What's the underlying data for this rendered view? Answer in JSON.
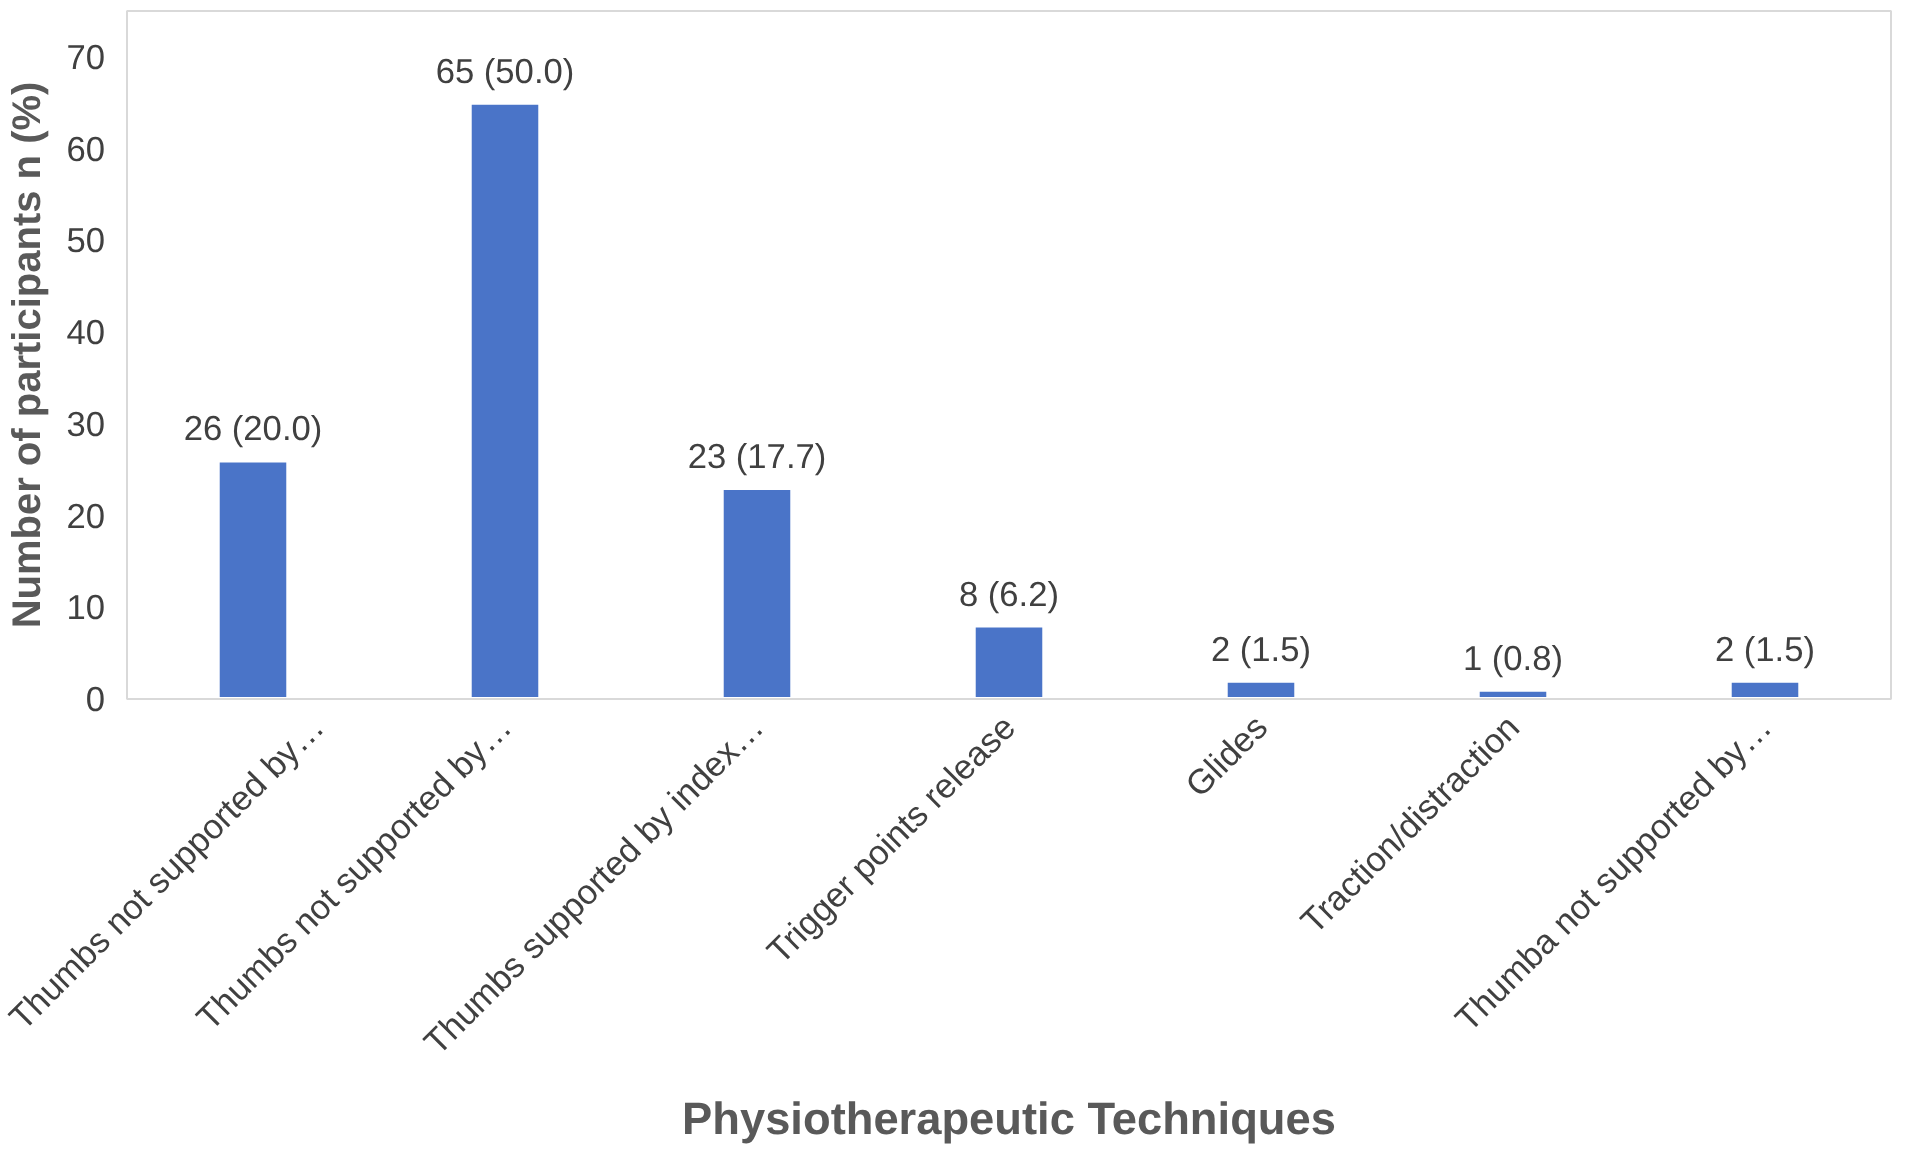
{
  "chart_data": {
    "type": "bar",
    "xlabel": "Physiotherapeutic Techniques",
    "ylabel": "Number of participants n (%)",
    "categories": [
      "Thumbs not supported by…",
      "Thumbs not supported by…",
      "Thumbs supported by index…",
      "Trigger points release",
      "Glides",
      "Traction/distraction",
      "Thumba not supported by…"
    ],
    "values": [
      26,
      65,
      23,
      8,
      2,
      1,
      2
    ],
    "value_labels": [
      "26 (20.0)",
      "65 (50.0)",
      "23 (17.7)",
      "8 (6.2)",
      "2 (1.5)",
      "1 (0.8)",
      "2 (1.5)"
    ],
    "color": "#4a74c8",
    "ylim": [
      0,
      75
    ],
    "yticks": [
      0,
      10,
      20,
      30,
      40,
      50,
      60,
      70
    ],
    "grid": false
  }
}
